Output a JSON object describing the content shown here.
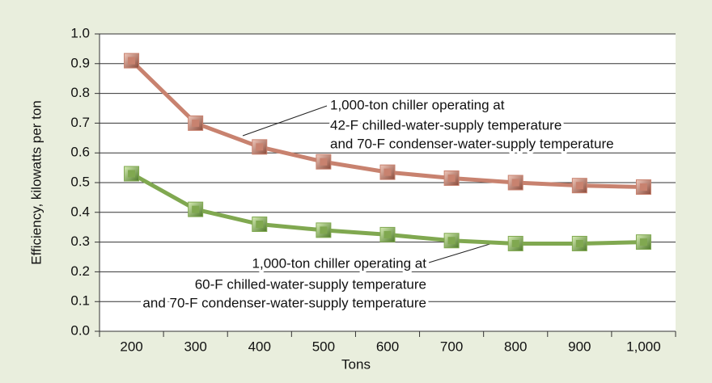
{
  "chart_data": {
    "type": "line",
    "x_label": "Tons",
    "y_label": "Efficiency, kilowatts per ton",
    "categories": [
      "200",
      "300",
      "400",
      "500",
      "600",
      "700",
      "800",
      "900",
      "1,000"
    ],
    "series": [
      {
        "color": "#c8826f",
        "values": [
          0.91,
          0.7,
          0.62,
          0.57,
          0.535,
          0.515,
          0.5,
          0.49,
          0.485
        ]
      },
      {
        "color": "#80a850",
        "values": [
          0.53,
          0.41,
          0.36,
          0.34,
          0.325,
          0.305,
          0.295,
          0.295,
          0.3
        ]
      }
    ],
    "ylim": [
      0,
      1
    ],
    "yticks": [
      {
        "value": 0,
        "label": "0.0"
      },
      0.1,
      0.2,
      0.3,
      0.4,
      0.5,
      0.6,
      0.7,
      0.8,
      0.9,
      {
        "value": 1,
        "label": "1.0"
      }
    ],
    "grid": true,
    "annotations": [
      {
        "lines": [
          "1,000-ton chiller operating at",
          "42-F chilled-water-supply temperature",
          "and 70-F condenser-water-supply temperature"
        ]
      },
      {
        "lines": [
          "1,000-ton chiller operating at",
          "60-F chilled-water-supply temperature",
          "and 70-F condenser-water-supply temperature"
        ]
      }
    ]
  }
}
